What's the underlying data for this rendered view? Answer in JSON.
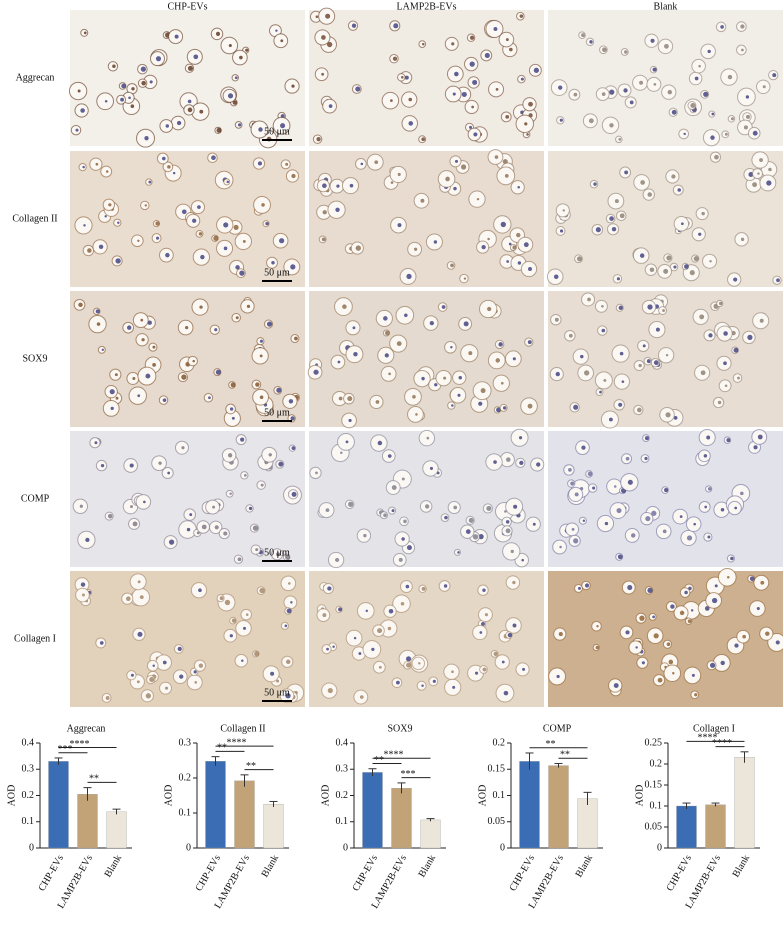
{
  "figure": {
    "columns": [
      "CHP-EVs",
      "LAMP2B-EVs",
      "Blank"
    ],
    "rows": [
      "Aggrecan",
      "Collagen II",
      "SOX9",
      "COMP",
      "Collagen I"
    ],
    "scale_bar": "50 μm"
  },
  "chart_data": [
    {
      "type": "bar",
      "title": "Aggrecan",
      "ylabel": "AOD",
      "categories": [
        "CHP-EVs",
        "LAMP2B-EVs",
        "Blank"
      ],
      "values": [
        0.33,
        0.205,
        0.138
      ],
      "errors": [
        0.013,
        0.025,
        0.01
      ],
      "colors": [
        "#3a6db4",
        "#c2a377",
        "#ebe5da"
      ],
      "ylim": [
        0,
        0.4
      ],
      "yticks": [
        0,
        0.1,
        0.2,
        0.3,
        0.4
      ],
      "annotations": [
        {
          "label": "****",
          "from": 0,
          "to": 2
        },
        {
          "label": "***",
          "from": 0,
          "to": 1
        },
        {
          "label": "**",
          "from": 1,
          "to": 2
        }
      ]
    },
    {
      "type": "bar",
      "title": "Collagen II",
      "ylabel": "AOD",
      "categories": [
        "CHP-EVs",
        "LAMP2B-EVs",
        "Blank"
      ],
      "values": [
        0.248,
        0.192,
        0.125
      ],
      "errors": [
        0.013,
        0.017,
        0.008
      ],
      "colors": [
        "#3a6db4",
        "#c2a377",
        "#ebe5da"
      ],
      "ylim": [
        0,
        0.3
      ],
      "yticks": [
        0,
        0.1,
        0.2,
        0.3
      ],
      "annotations": [
        {
          "label": "****",
          "from": 0,
          "to": 2
        },
        {
          "label": "**",
          "from": 0,
          "to": 1
        },
        {
          "label": "**",
          "from": 1,
          "to": 2
        }
      ]
    },
    {
      "type": "bar",
      "title": "SOX9",
      "ylabel": "AOD",
      "categories": [
        "CHP-EVs",
        "LAMP2B-EVs",
        "Blank"
      ],
      "values": [
        0.288,
        0.228,
        0.107
      ],
      "errors": [
        0.014,
        0.02,
        0.005
      ],
      "colors": [
        "#3a6db4",
        "#c2a377",
        "#ebe5da"
      ],
      "ylim": [
        0,
        0.4
      ],
      "yticks": [
        0,
        0.1,
        0.2,
        0.3,
        0.4
      ],
      "annotations": [
        {
          "label": "****",
          "from": 0,
          "to": 2
        },
        {
          "label": "**",
          "from": 0,
          "to": 1
        },
        {
          "label": "***",
          "from": 1,
          "to": 2
        }
      ]
    },
    {
      "type": "bar",
      "title": "COMP",
      "ylabel": "AOD",
      "categories": [
        "CHP-EVs",
        "LAMP2B-EVs",
        "Blank"
      ],
      "values": [
        0.165,
        0.157,
        0.094
      ],
      "errors": [
        0.016,
        0.004,
        0.012
      ],
      "colors": [
        "#3a6db4",
        "#c2a377",
        "#ebe5da"
      ],
      "ylim": [
        0,
        0.2
      ],
      "yticks": [
        0,
        0.05,
        0.1,
        0.15,
        0.2
      ],
      "annotations": [
        {
          "label": "**",
          "from": 0,
          "to": 2
        },
        {
          "label": "**",
          "from": 1,
          "to": 2
        }
      ]
    },
    {
      "type": "bar",
      "title": "Collagen I",
      "ylabel": "AOD",
      "categories": [
        "CHP-EVs",
        "LAMP2B-EVs",
        "Blank"
      ],
      "values": [
        0.1,
        0.103,
        0.216
      ],
      "errors": [
        0.007,
        0.004,
        0.013
      ],
      "colors": [
        "#3a6db4",
        "#c2a377",
        "#ebe5da"
      ],
      "ylim": [
        0,
        0.25
      ],
      "yticks": [
        0,
        0.05,
        0.1,
        0.15,
        0.2,
        0.25
      ],
      "annotations": [
        {
          "label": "****",
          "from": 0,
          "to": 2
        },
        {
          "label": "****",
          "from": 1,
          "to": 2
        }
      ]
    }
  ]
}
